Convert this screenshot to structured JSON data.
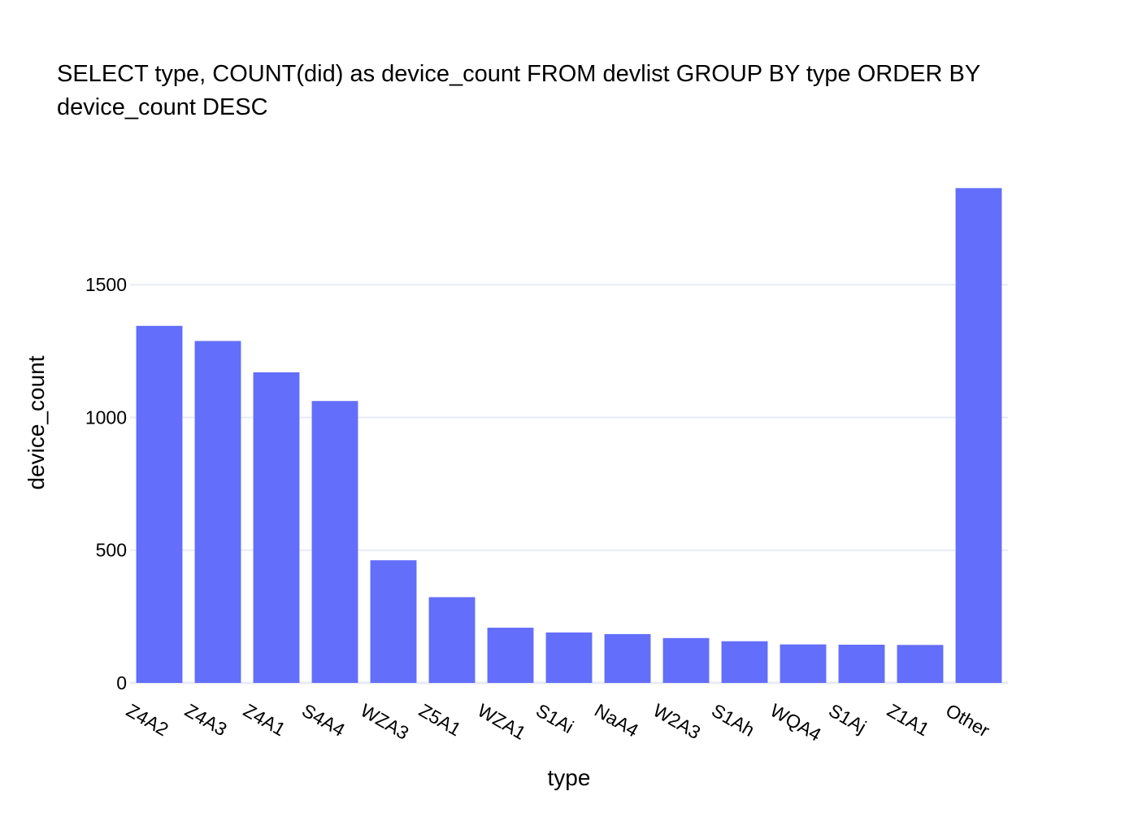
{
  "chart_data": {
    "type": "bar",
    "title_lines": [
      "SELECT type, COUNT(did) as device_count FROM devlist GROUP BY type ORDER BY",
      "device_count DESC"
    ],
    "xlabel": "type",
    "ylabel": "device_count",
    "categories": [
      "Z4A2",
      "Z4A3",
      "Z4A1",
      "S4A4",
      "WZA3",
      "Z5A1",
      "WZA1",
      "S1Ai",
      "NaA4",
      "W2A3",
      "S1Ah",
      "WQA4",
      "S1Aj",
      "Z1A1",
      "Other"
    ],
    "values": [
      1345,
      1288,
      1170,
      1062,
      462,
      323,
      208,
      190,
      184,
      169,
      157,
      145,
      144,
      143,
      1864
    ],
    "ylim": [
      0,
      1960
    ],
    "yticks": [
      0,
      500,
      1000,
      1500
    ],
    "ytick_labels": [
      "0",
      "500",
      "1000",
      "1500"
    ],
    "grid": true,
    "bar_color": "#636efa",
    "grid_color": "#e8ebf5",
    "axis_line_color": "#e8ebf5"
  }
}
